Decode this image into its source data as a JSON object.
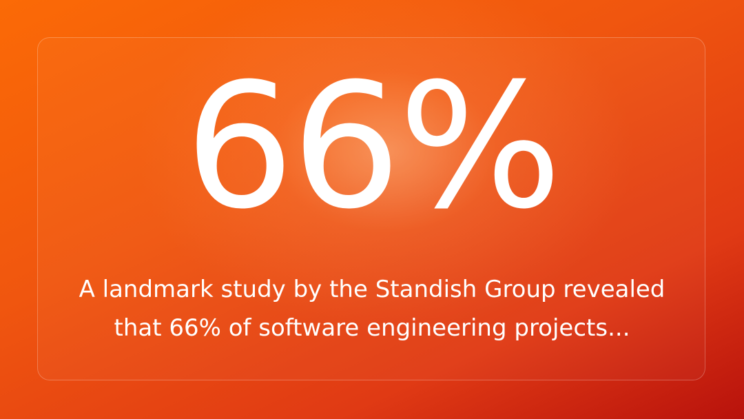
{
  "stat": "66%",
  "caption": "A landmark study by the Standish Group revealed that 66% of software engineering projects..."
}
